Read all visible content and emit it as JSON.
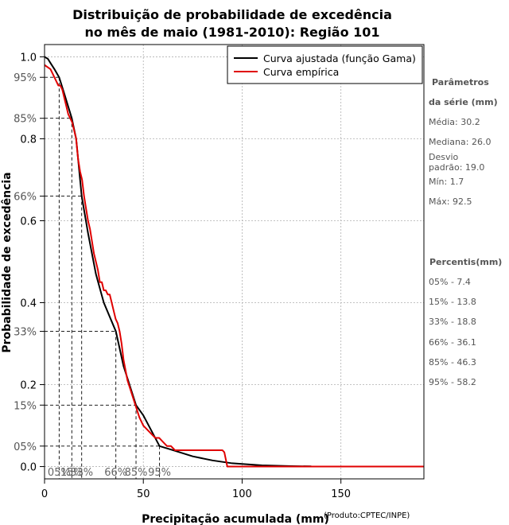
{
  "chart_data": {
    "type": "line",
    "title_lines": [
      "Distribuição de probabilidade de excedência",
      "no mês de maio (1981-2010): Região 101"
    ],
    "xlabel": "Precipitação acumulada (mm)",
    "ylabel": "Probabilidade de excedência",
    "credit": "(Produto:CPTEC/INPE)",
    "xlim": [
      0,
      192
    ],
    "ylim": [
      -0.03,
      1.03
    ],
    "x_ticks": [
      0,
      50,
      100,
      150
    ],
    "y_ticks": [
      {
        "value": 0.0,
        "label": "0.0"
      },
      {
        "value": 0.2,
        "label": "0.2"
      },
      {
        "value": 0.4,
        "label": "0.4"
      },
      {
        "value": 0.6,
        "label": "0.6"
      },
      {
        "value": 0.8,
        "label": "0.8"
      },
      {
        "value": 1.0,
        "label": "1.0"
      }
    ],
    "y_pct_ticks": [
      {
        "value": 0.05,
        "label": "05%"
      },
      {
        "value": 0.15,
        "label": "15%"
      },
      {
        "value": 0.33,
        "label": "33%"
      },
      {
        "value": 0.66,
        "label": "66%"
      },
      {
        "value": 0.85,
        "label": "85%"
      },
      {
        "value": 0.95,
        "label": "95%"
      }
    ],
    "grid": true,
    "legend_position": "top-right",
    "series": [
      {
        "name": "Curva ajustada (função Gama)",
        "color": "#000000",
        "x": [
          0,
          1.7,
          3,
          5,
          7.4,
          10,
          13.8,
          16,
          18.8,
          22,
          26,
          30,
          36.1,
          40,
          46.3,
          50,
          58.2,
          65,
          75,
          85,
          95,
          110,
          125,
          135
        ],
        "y": [
          1.0,
          0.995,
          0.985,
          0.97,
          0.95,
          0.91,
          0.85,
          0.8,
          0.66,
          0.57,
          0.47,
          0.4,
          0.33,
          0.245,
          0.15,
          0.125,
          0.05,
          0.04,
          0.025,
          0.015,
          0.008,
          0.003,
          0.001,
          0.0005
        ]
      },
      {
        "name": "Curva empírica",
        "color": "#e00000",
        "x": [
          0,
          3,
          5,
          7,
          8,
          9,
          10,
          11,
          12,
          13,
          14,
          15,
          16,
          17,
          18,
          19,
          20,
          21,
          22,
          23,
          24,
          25,
          26,
          27,
          28,
          29,
          30,
          31,
          32,
          33,
          34,
          35,
          36,
          37,
          38,
          39,
          40,
          42,
          44,
          46,
          48,
          50,
          52,
          54,
          56,
          58,
          60,
          62,
          64,
          66,
          68,
          70,
          75,
          80,
          85,
          90,
          91,
          92.5,
          192
        ],
        "y": [
          0.98,
          0.97,
          0.95,
          0.93,
          0.93,
          0.92,
          0.9,
          0.88,
          0.86,
          0.85,
          0.84,
          0.82,
          0.8,
          0.75,
          0.72,
          0.7,
          0.66,
          0.63,
          0.6,
          0.58,
          0.55,
          0.52,
          0.5,
          0.48,
          0.45,
          0.45,
          0.43,
          0.43,
          0.42,
          0.42,
          0.4,
          0.38,
          0.36,
          0.35,
          0.33,
          0.3,
          0.26,
          0.21,
          0.18,
          0.15,
          0.12,
          0.1,
          0.09,
          0.08,
          0.07,
          0.07,
          0.06,
          0.05,
          0.05,
          0.04,
          0.04,
          0.04,
          0.04,
          0.04,
          0.04,
          0.04,
          0.035,
          0.0,
          0.0
        ]
      }
    ],
    "percentile_guides": [
      {
        "x": 7.4,
        "y": 0.95,
        "label": "05%"
      },
      {
        "x": 13.8,
        "y": 0.85,
        "label": "15%"
      },
      {
        "x": 18.8,
        "y": 0.66,
        "label": "33%"
      },
      {
        "x": 36.1,
        "y": 0.33,
        "label": "66%"
      },
      {
        "x": 46.3,
        "y": 0.15,
        "label": "85%"
      },
      {
        "x": 58.2,
        "y": 0.05,
        "label": "95%"
      }
    ]
  },
  "sidebar": {
    "params_head": [
      "Parâmetros",
      "da série (mm)"
    ],
    "stats": [
      "Média: 30.2",
      "Mediana: 26.0",
      "Desvio",
      "padrão: 19.0",
      "Mín: 1.7",
      "Máx: 92.5"
    ],
    "percentiles_head": "Percentis(mm)",
    "percentiles": [
      "05% - 7.4",
      "15% - 13.8",
      "33% - 18.8",
      "66% - 36.1",
      "85% - 46.3",
      "95% - 58.2"
    ]
  },
  "colors": {
    "fitted": "#000000",
    "empirical": "#e00000",
    "grid": "#b0b0b0",
    "guides": "#000000"
  }
}
